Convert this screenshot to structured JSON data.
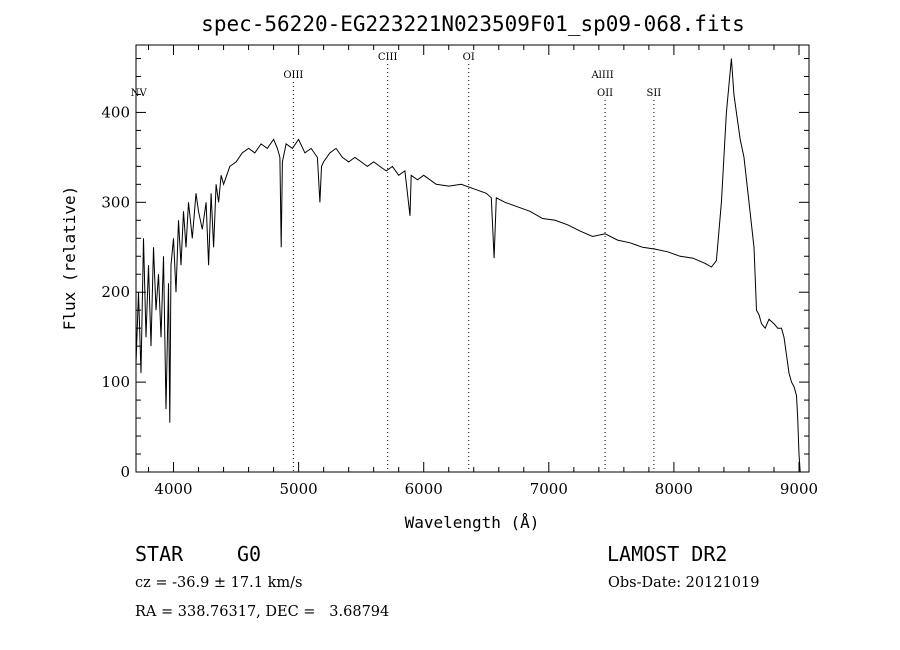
{
  "chart_data": {
    "type": "line",
    "title": "spec-56220-EG223221N023509F01_sp09-068.fits",
    "xlabel": "Wavelength (Å)",
    "ylabel": "Flux (relative)",
    "xlim": [
      3700,
      9080
    ],
    "ylim": [
      0,
      475
    ],
    "x_ticks": [
      4000,
      5000,
      6000,
      7000,
      8000,
      9000
    ],
    "y_ticks": [
      0,
      100,
      200,
      300,
      400
    ],
    "grid": false,
    "series": [
      {
        "x": [
          3700,
          3720,
          3740,
          3760,
          3780,
          3800,
          3820,
          3840,
          3860,
          3880,
          3900,
          3920,
          3940,
          3960,
          3970,
          3980,
          4000,
          4020,
          4040,
          4060,
          4080,
          4100,
          4120,
          4150,
          4180,
          4200,
          4230,
          4260,
          4280,
          4300,
          4320,
          4340,
          4360,
          4380,
          4400,
          4450,
          4500,
          4550,
          4600,
          4650,
          4700,
          4750,
          4800,
          4830,
          4850,
          4861,
          4870,
          4900,
          4950,
          5000,
          5050,
          5100,
          5150,
          5170,
          5183,
          5200,
          5250,
          5300,
          5350,
          5400,
          5450,
          5500,
          5550,
          5600,
          5650,
          5700,
          5750,
          5800,
          5850,
          5890,
          5900,
          5950,
          6000,
          6100,
          6200,
          6300,
          6400,
          6500,
          6540,
          6563,
          6580,
          6650,
          6750,
          6850,
          6950,
          7050,
          7150,
          7250,
          7350,
          7450,
          7550,
          7650,
          7750,
          7850,
          7950,
          8050,
          8150,
          8250,
          8300,
          8340,
          8380,
          8420,
          8460,
          8480,
          8500,
          8530,
          8560,
          8600,
          8640,
          8660,
          8680,
          8700,
          8730,
          8760,
          8800,
          8830,
          8860,
          8880,
          8900,
          8920,
          8940,
          8960,
          8980,
          8990,
          9000,
          9010
        ],
        "y": [
          120,
          200,
          110,
          260,
          150,
          230,
          140,
          250,
          180,
          220,
          150,
          240,
          70,
          210,
          55,
          230,
          260,
          200,
          280,
          230,
          290,
          250,
          300,
          260,
          310,
          290,
          270,
          300,
          230,
          310,
          250,
          320,
          300,
          330,
          320,
          340,
          345,
          355,
          360,
          355,
          365,
          360,
          370,
          360,
          350,
          250,
          345,
          365,
          360,
          370,
          355,
          360,
          350,
          300,
          340,
          345,
          355,
          360,
          350,
          345,
          350,
          345,
          340,
          345,
          340,
          335,
          340,
          330,
          335,
          285,
          330,
          325,
          330,
          320,
          318,
          320,
          315,
          310,
          305,
          238,
          305,
          300,
          295,
          290,
          282,
          280,
          275,
          268,
          262,
          265,
          258,
          255,
          250,
          248,
          245,
          240,
          238,
          232,
          228,
          235,
          300,
          400,
          460,
          420,
          400,
          370,
          350,
          300,
          250,
          180,
          175,
          165,
          160,
          170,
          165,
          160,
          160,
          150,
          130,
          110,
          100,
          95,
          85,
          60,
          20,
          0
        ]
      }
    ],
    "lines": [
      {
        "label": "NV",
        "x": 3722
      },
      {
        "label": "OIII",
        "x": 4958
      },
      {
        "label": "CIII",
        "x": 5712
      },
      {
        "label": "OI",
        "x": 6360
      },
      {
        "label": "AlIII",
        "x": 7430
      },
      {
        "label": "OII",
        "x": 7450
      },
      {
        "label": "SII",
        "x": 7840
      }
    ]
  },
  "info": {
    "class": "STAR",
    "subclass": "G0",
    "survey": "LAMOST DR2",
    "cz": "cz = -36.9 ± 17.1 km/s",
    "obs_date": "Obs-Date: 20121019",
    "coords": "RA = 338.76317, DEC =   3.68794"
  }
}
